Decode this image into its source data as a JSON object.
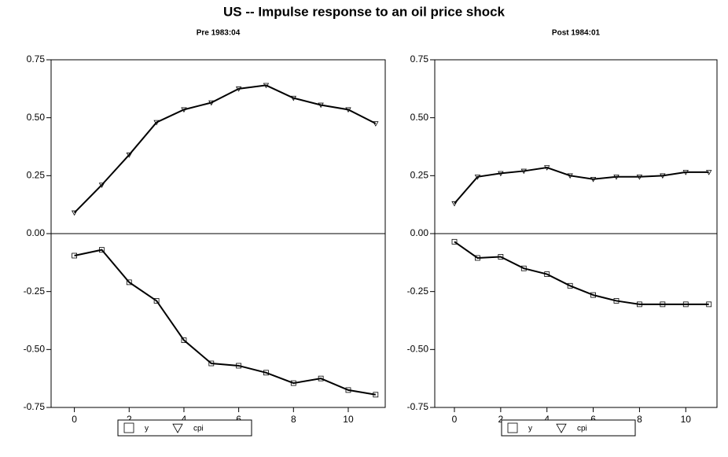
{
  "title": "US -- Impulse response to an oil price shock",
  "chart_data": [
    {
      "type": "line",
      "title": "Pre 1983:04",
      "x": [
        0,
        1,
        2,
        3,
        4,
        5,
        6,
        7,
        8,
        9,
        10,
        11
      ],
      "xlim": [
        -0.85,
        11.35
      ],
      "xticks": [
        0,
        2,
        4,
        6,
        8,
        10
      ],
      "ylim": [
        -0.75,
        0.75
      ],
      "yticks": [
        0.75,
        {
          "value": 0.5,
          "label": "0.50"
        },
        0.25,
        {
          "value": 0,
          "label": "0.00"
        },
        -0.25,
        {
          "value": -0.5,
          "label": "-0.50"
        },
        -0.75
      ],
      "series": [
        {
          "name": "y",
          "color": "#000000",
          "marker": "square",
          "values": [
            -0.095,
            -0.07,
            -0.21,
            -0.29,
            -0.46,
            -0.56,
            -0.57,
            -0.6,
            -0.645,
            -0.625,
            -0.675,
            -0.695
          ]
        },
        {
          "name": "cpi",
          "color": "#000000",
          "marker": "triangle-down",
          "values": [
            0.09,
            0.21,
            0.34,
            0.48,
            0.535,
            0.565,
            0.625,
            0.64,
            0.585,
            0.555,
            0.535,
            0.475
          ]
        }
      ]
    },
    {
      "type": "line",
      "title": "Post 1984:01",
      "x": [
        0,
        1,
        2,
        3,
        4,
        5,
        6,
        7,
        8,
        9,
        10,
        11
      ],
      "xlim": [
        -0.85,
        11.35
      ],
      "xticks": [
        0,
        2,
        4,
        6,
        8,
        10
      ],
      "ylim": [
        -0.75,
        0.75
      ],
      "yticks": [
        0.75,
        {
          "value": 0.5,
          "label": "0.50"
        },
        0.25,
        {
          "value": 0,
          "label": "0.00"
        },
        -0.25,
        {
          "value": -0.5,
          "label": "-0.50"
        },
        -0.75
      ],
      "series": [
        {
          "name": "y",
          "color": "#000000",
          "marker": "square",
          "values": [
            -0.035,
            -0.105,
            -0.1,
            -0.15,
            -0.175,
            -0.225,
            -0.265,
            -0.29,
            -0.305,
            -0.305,
            -0.305,
            -0.305
          ]
        },
        {
          "name": "cpi",
          "color": "#000000",
          "marker": "triangle-down",
          "values": [
            0.13,
            0.245,
            0.26,
            0.27,
            0.285,
            0.25,
            0.235,
            0.245,
            0.245,
            0.25,
            0.265,
            0.265
          ]
        }
      ]
    }
  ]
}
